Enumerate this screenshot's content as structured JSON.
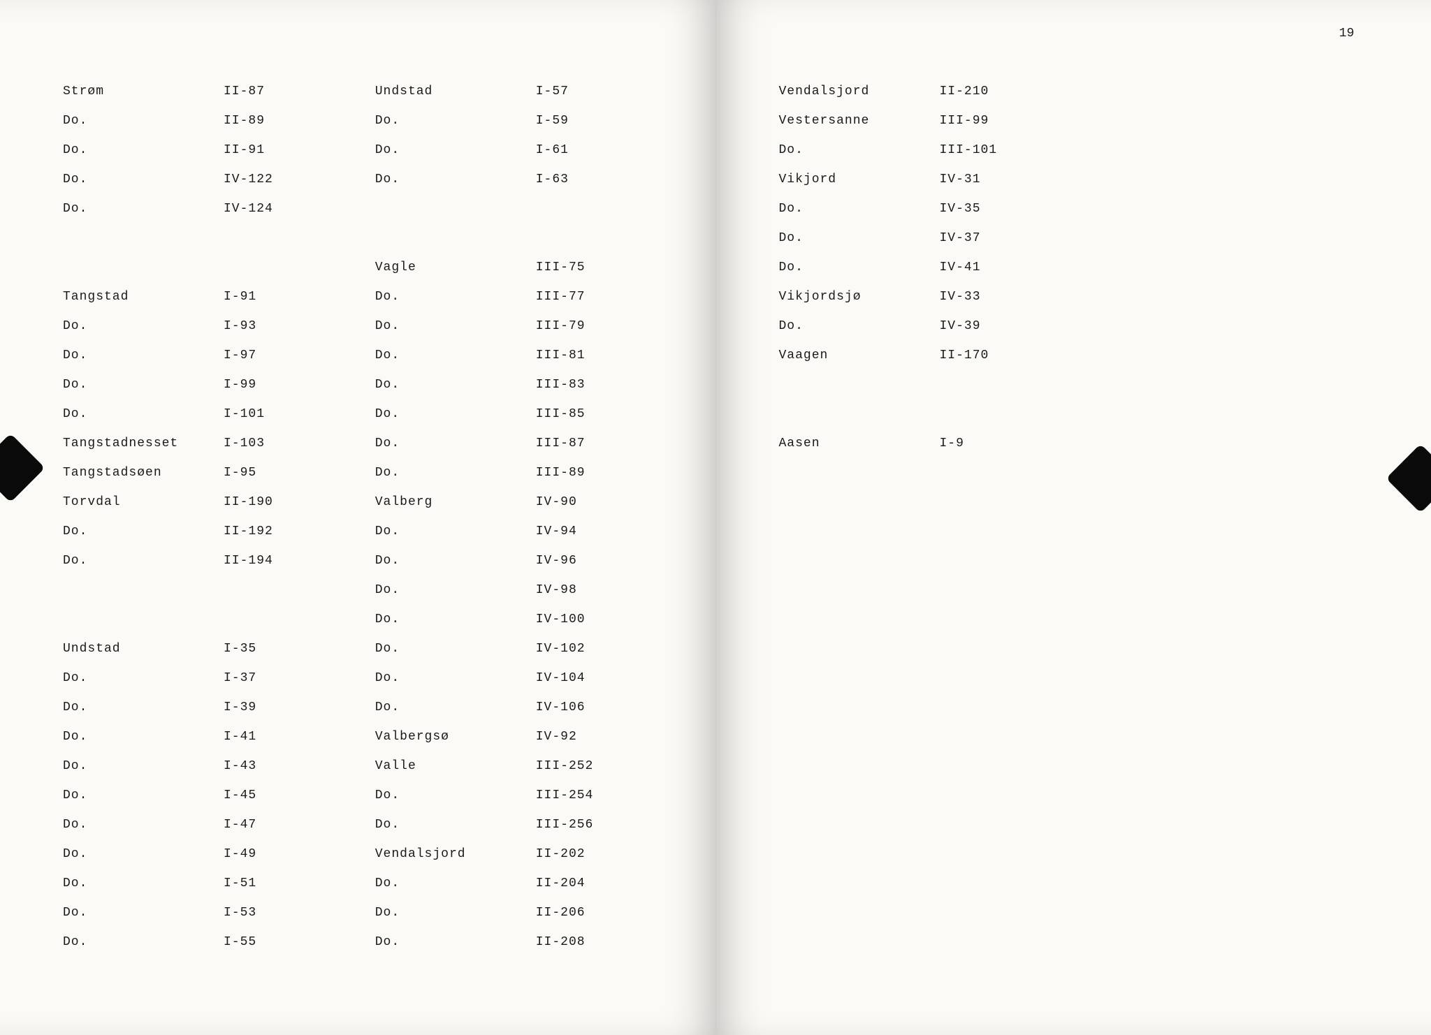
{
  "pageNumber": "19",
  "left": {
    "col1": [
      {
        "name": "Strøm",
        "ref": "II-87"
      },
      {
        "name": "Do.",
        "ref": "II-89"
      },
      {
        "name": "Do.",
        "ref": "II-91"
      },
      {
        "name": "Do.",
        "ref": "IV-122"
      },
      {
        "name": "Do.",
        "ref": "IV-124"
      },
      {
        "name": "",
        "ref": ""
      },
      {
        "name": "",
        "ref": ""
      },
      {
        "name": "Tangstad",
        "ref": "I-91"
      },
      {
        "name": "Do.",
        "ref": "I-93"
      },
      {
        "name": "Do.",
        "ref": "I-97"
      },
      {
        "name": "Do.",
        "ref": "I-99"
      },
      {
        "name": "Do.",
        "ref": "I-101"
      },
      {
        "name": "Tangstadnesset",
        "ref": "I-103"
      },
      {
        "name": "Tangstadsøen",
        "ref": "I-95"
      },
      {
        "name": "Torvdal",
        "ref": "II-190"
      },
      {
        "name": "Do.",
        "ref": "II-192"
      },
      {
        "name": "Do.",
        "ref": "II-194"
      },
      {
        "name": "",
        "ref": ""
      },
      {
        "name": "",
        "ref": ""
      },
      {
        "name": "Undstad",
        "ref": "I-35"
      },
      {
        "name": "Do.",
        "ref": "I-37"
      },
      {
        "name": "Do.",
        "ref": "I-39"
      },
      {
        "name": "Do.",
        "ref": "I-41"
      },
      {
        "name": "Do.",
        "ref": "I-43"
      },
      {
        "name": "Do.",
        "ref": "I-45"
      },
      {
        "name": "Do.",
        "ref": "I-47"
      },
      {
        "name": "Do.",
        "ref": "I-49"
      },
      {
        "name": "Do.",
        "ref": "I-51"
      },
      {
        "name": "Do.",
        "ref": "I-53"
      },
      {
        "name": "Do.",
        "ref": "I-55"
      }
    ],
    "col2": [
      {
        "name": "Undstad",
        "ref": "I-57"
      },
      {
        "name": "Do.",
        "ref": "I-59"
      },
      {
        "name": "Do.",
        "ref": "I-61"
      },
      {
        "name": "Do.",
        "ref": "I-63"
      },
      {
        "name": "",
        "ref": ""
      },
      {
        "name": "",
        "ref": ""
      },
      {
        "name": "Vagle",
        "ref": "III-75"
      },
      {
        "name": "Do.",
        "ref": "III-77"
      },
      {
        "name": "Do.",
        "ref": "III-79"
      },
      {
        "name": "Do.",
        "ref": "III-81"
      },
      {
        "name": "Do.",
        "ref": "III-83"
      },
      {
        "name": "Do.",
        "ref": "III-85"
      },
      {
        "name": "Do.",
        "ref": "III-87"
      },
      {
        "name": "Do.",
        "ref": "III-89"
      },
      {
        "name": "Valberg",
        "ref": "IV-90"
      },
      {
        "name": "Do.",
        "ref": "IV-94"
      },
      {
        "name": "Do.",
        "ref": "IV-96"
      },
      {
        "name": "Do.",
        "ref": "IV-98"
      },
      {
        "name": "Do.",
        "ref": "IV-100"
      },
      {
        "name": "Do.",
        "ref": "IV-102"
      },
      {
        "name": "Do.",
        "ref": "IV-104"
      },
      {
        "name": "Do.",
        "ref": "IV-106"
      },
      {
        "name": "Valbergsø",
        "ref": "IV-92"
      },
      {
        "name": "Valle",
        "ref": "III-252"
      },
      {
        "name": "Do.",
        "ref": "III-254"
      },
      {
        "name": "Do.",
        "ref": "III-256"
      },
      {
        "name": "Vendalsjord",
        "ref": "II-202"
      },
      {
        "name": "Do.",
        "ref": "II-204"
      },
      {
        "name": "Do.",
        "ref": "II-206"
      },
      {
        "name": "Do.",
        "ref": "II-208"
      }
    ]
  },
  "right": {
    "col1": [
      {
        "name": "Vendalsjord",
        "ref": "II-210"
      },
      {
        "name": "Vestersanne",
        "ref": "III-99"
      },
      {
        "name": "Do.",
        "ref": "III-101"
      },
      {
        "name": "Vikjord",
        "ref": "IV-31"
      },
      {
        "name": "Do.",
        "ref": "IV-35"
      },
      {
        "name": "Do.",
        "ref": "IV-37"
      },
      {
        "name": "Do.",
        "ref": "IV-41"
      },
      {
        "name": "Vikjordsjø",
        "ref": "IV-33"
      },
      {
        "name": "Do.",
        "ref": "IV-39"
      },
      {
        "name": "Vaagen",
        "ref": "II-170"
      },
      {
        "name": "",
        "ref": ""
      },
      {
        "name": "",
        "ref": ""
      },
      {
        "name": "Aasen",
        "ref": "I-9"
      }
    ],
    "col2": []
  }
}
